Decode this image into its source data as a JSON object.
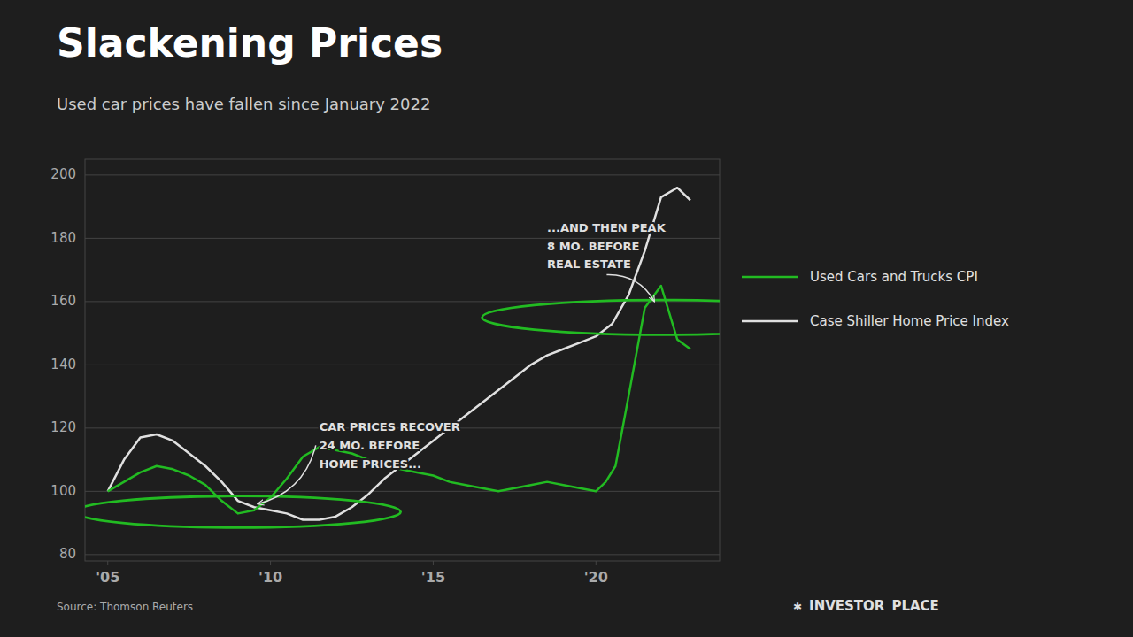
{
  "chart_data": {
    "type": "line",
    "title": "Slackening Prices",
    "subtitle": "Used car prices have fallen since January 2022",
    "source": "Source: Thomson Reuters",
    "branding": [
      "✱",
      "INVESTOR",
      "PLACE"
    ],
    "xlim": [
      2004.3,
      2023.8
    ],
    "xticks": [
      {
        "value": 2005,
        "label": "'05"
      },
      {
        "value": 2010,
        "label": "'10"
      },
      {
        "value": 2015,
        "label": "'15"
      },
      {
        "value": 2020,
        "label": "'20"
      }
    ],
    "ylim": [
      78,
      205
    ],
    "yticks": [
      80,
      100,
      120,
      140,
      160,
      180,
      200
    ],
    "grid": true,
    "legend": "right",
    "series": [
      {
        "name": "Case Shiller Home Price Index",
        "color": "#e0e0e0",
        "x": [
          2005.0,
          2005.5,
          2006.0,
          2006.5,
          2007.0,
          2007.5,
          2008.0,
          2008.5,
          2009.0,
          2009.5,
          2010.0,
          2010.5,
          2011.0,
          2011.5,
          2012.0,
          2012.5,
          2013.0,
          2013.5,
          2014.0,
          2014.5,
          2015.0,
          2015.5,
          2016.0,
          2016.5,
          2017.0,
          2017.5,
          2018.0,
          2018.5,
          2019.0,
          2019.5,
          2020.0,
          2020.5,
          2021.0,
          2021.5,
          2022.0,
          2022.5,
          2022.9
        ],
        "values": [
          100,
          110,
          117,
          118,
          116,
          112,
          108,
          103,
          97,
          95,
          94,
          93,
          91,
          91,
          92,
          95,
          99,
          104,
          108,
          112,
          116,
          120,
          124,
          128,
          132,
          136,
          140,
          143,
          145,
          147,
          149,
          153,
          162,
          176,
          193,
          196,
          192
        ]
      },
      {
        "name": "Used Cars and Trucks CPI",
        "color": "#22bb22",
        "x": [
          2005.0,
          2005.5,
          2006.0,
          2006.5,
          2007.0,
          2007.5,
          2008.0,
          2008.5,
          2009.0,
          2009.5,
          2010.0,
          2010.5,
          2011.0,
          2011.5,
          2012.0,
          2012.5,
          2013.0,
          2013.5,
          2014.0,
          2014.5,
          2015.0,
          2015.5,
          2016.0,
          2016.5,
          2017.0,
          2017.5,
          2018.0,
          2018.5,
          2019.0,
          2019.5,
          2020.0,
          2020.3,
          2020.6,
          2021.0,
          2021.5,
          2022.0,
          2022.5,
          2022.9
        ],
        "values": [
          100,
          103,
          106,
          108,
          107,
          105,
          102,
          97,
          93,
          94,
          98,
          104,
          111,
          114,
          113,
          112,
          110,
          108,
          107,
          106,
          105,
          103,
          102,
          101,
          100,
          101,
          102,
          103,
          102,
          101,
          100,
          103,
          108,
          130,
          158,
          165,
          148,
          145
        ]
      }
    ],
    "circles": [
      {
        "x": 2009.0,
        "y": 93.5,
        "radius": 5.0,
        "color": "#22bb22"
      },
      {
        "x": 2022.0,
        "y": 155.0,
        "radius": 5.5,
        "color": "#22bb22"
      }
    ],
    "annotations": [
      {
        "text": "CAR PRICES RECOVER\n24 MO. BEFORE\nHOME PRICES...",
        "x": 2009.6,
        "y": 96,
        "text_x": 2011.5,
        "text_y": 122
      },
      {
        "text": "...AND THEN PEAK\n8 MO. BEFORE\nREAL ESTATE",
        "x": 2021.8,
        "y": 160,
        "text_x": 2018.5,
        "text_y": 185
      }
    ]
  }
}
